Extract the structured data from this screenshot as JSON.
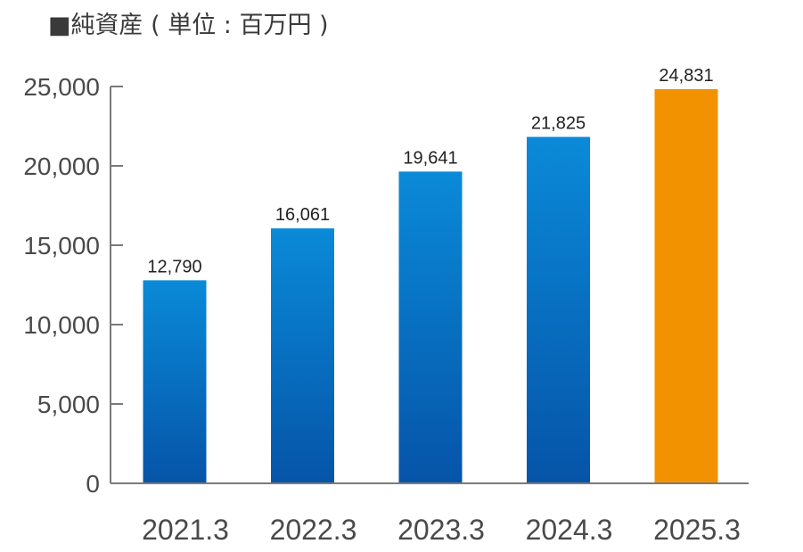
{
  "title": "■純資産 ( 単位 : 百万円 )",
  "chart_data": {
    "type": "bar",
    "title": "■純資産 ( 単位 : 百万円 )",
    "categories": [
      "2021.3",
      "2022.3",
      "2023.3",
      "2024.3",
      "2025.3"
    ],
    "values": [
      12790,
      16061,
      19641,
      21825,
      24831
    ],
    "value_labels": [
      "12,790",
      "16,061",
      "19,641",
      "21,825",
      "24,831"
    ],
    "ylim": [
      0,
      25000
    ],
    "yticks": [
      0,
      5000,
      10000,
      15000,
      20000,
      25000
    ],
    "ytick_labels": [
      "0",
      "5,000",
      "10,000",
      "15,000",
      "20,000",
      "25,000"
    ],
    "grid": false,
    "legend": "none",
    "colors": {
      "bar_top": "#0a8ad8",
      "bar_bottom": "#0654a8",
      "highlight": "#f29200",
      "axis": "#7a7a7a"
    },
    "highlight_index": 4
  }
}
